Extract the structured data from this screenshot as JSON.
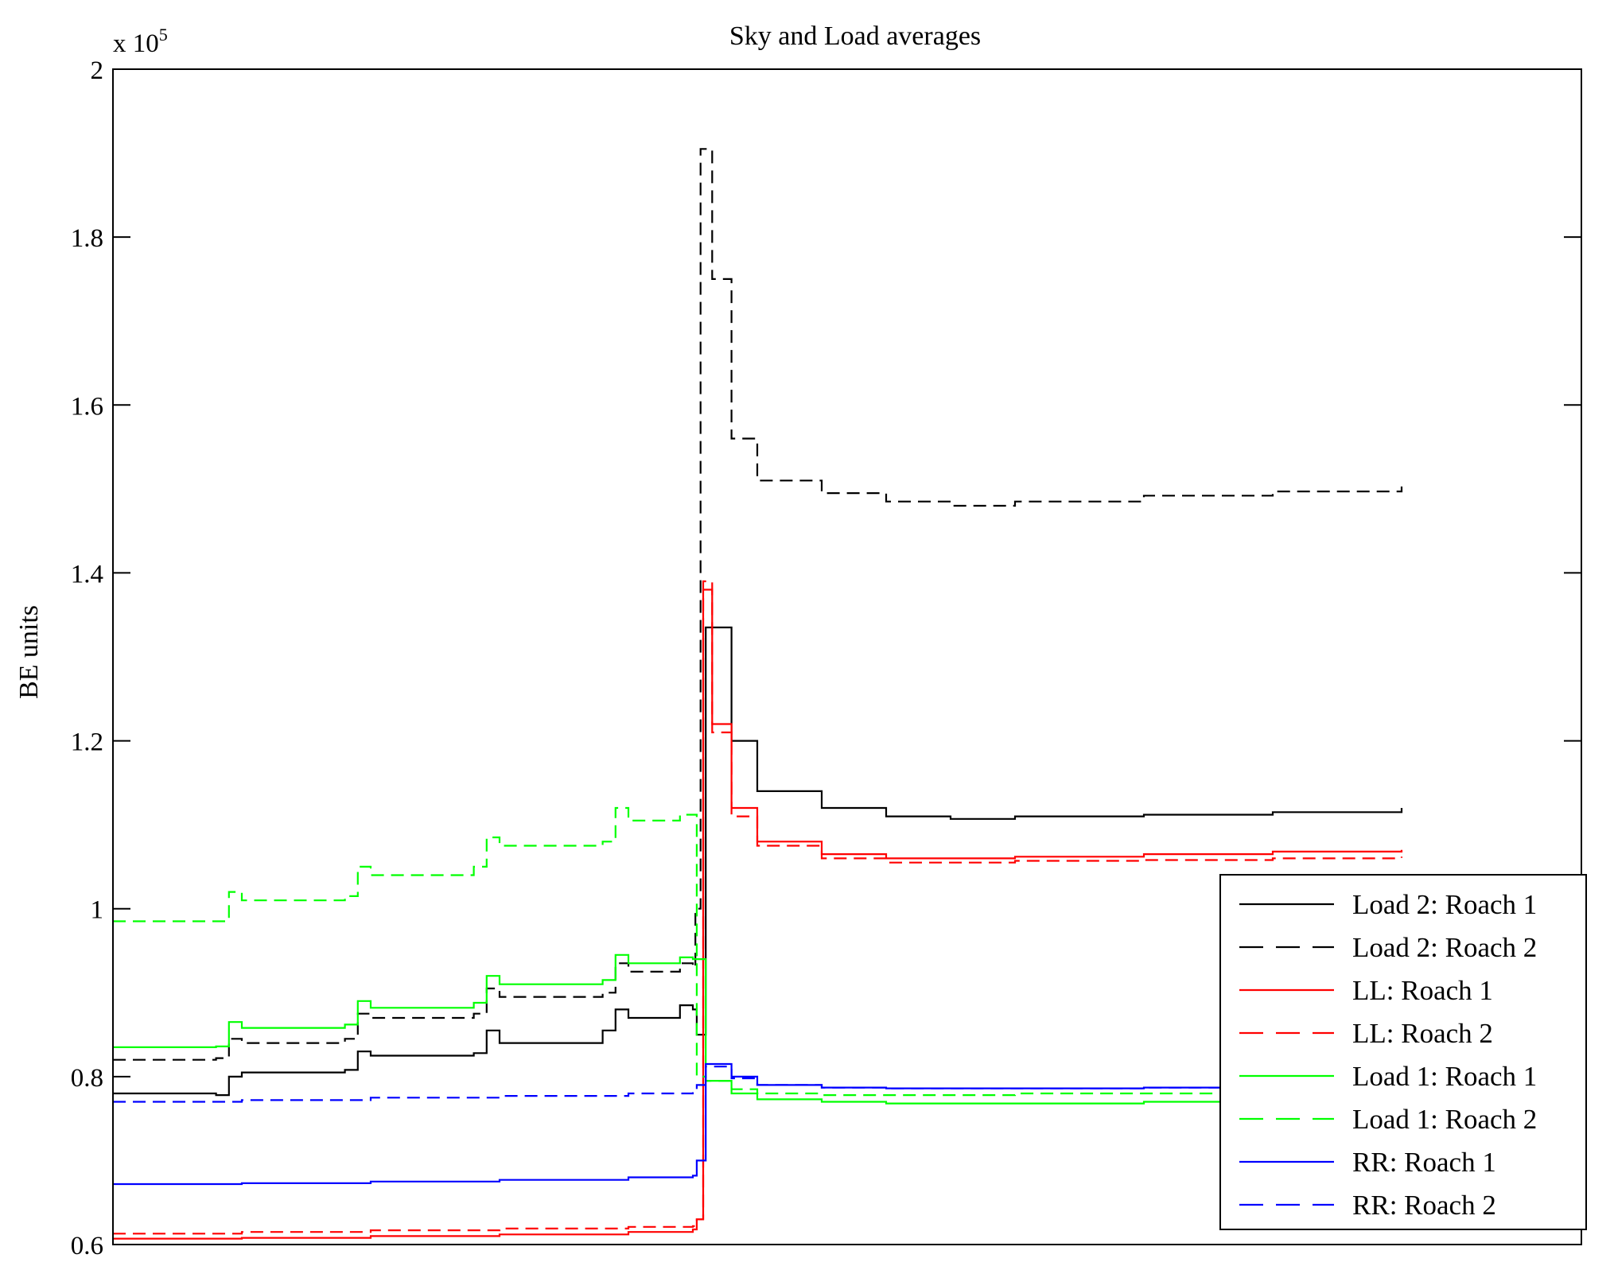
{
  "chart_data": {
    "type": "line",
    "title": "Sky and Load averages",
    "xlabel": "",
    "ylabel": "BE units",
    "y_multiplier": "x 10",
    "y_multiplier_exponent": "5",
    "ylim": [
      0.6,
      2.0
    ],
    "xlim": [
      0,
      100
    ],
    "yticks": [
      0.6,
      0.8,
      1.0,
      1.2,
      1.4,
      1.6,
      1.8,
      2.0
    ],
    "ytick_labels": [
      "0.6",
      "0.8",
      "1",
      "1.2",
      "1.4",
      "1.6",
      "1.8",
      "2"
    ],
    "legend_position": "bottom-right",
    "series": [
      {
        "name": "Load 2: Roach 1",
        "color": "#000000",
        "style": "solid",
        "x": [
          0,
          8,
          9,
          10,
          18,
          19,
          20,
          28,
          29,
          30,
          38,
          39,
          40,
          44,
          45,
          45.3,
          46,
          48,
          50,
          55,
          60,
          65,
          70,
          80,
          90,
          100
        ],
        "y": [
          0.78,
          0.778,
          0.8,
          0.805,
          0.808,
          0.83,
          0.825,
          0.828,
          0.855,
          0.84,
          0.855,
          0.88,
          0.87,
          0.885,
          0.88,
          0.85,
          1.335,
          1.2,
          1.14,
          1.12,
          1.11,
          1.107,
          1.11,
          1.112,
          1.115,
          1.12
        ]
      },
      {
        "name": "Load 2: Roach 2",
        "color": "#000000",
        "style": "dashed",
        "x": [
          0,
          8,
          9,
          10,
          18,
          19,
          20,
          28,
          29,
          30,
          38,
          39,
          40,
          44,
          45,
          45.2,
          45.6,
          46.5,
          48,
          50,
          55,
          60,
          65,
          70,
          80,
          90,
          100
        ],
        "y": [
          0.82,
          0.822,
          0.845,
          0.84,
          0.845,
          0.875,
          0.87,
          0.875,
          0.905,
          0.895,
          0.9,
          0.935,
          0.925,
          0.935,
          0.93,
          1.0,
          1.905,
          1.75,
          1.56,
          1.51,
          1.495,
          1.485,
          1.48,
          1.485,
          1.492,
          1.497,
          1.503
        ]
      },
      {
        "name": "LL: Roach 1",
        "color": "#ff0000",
        "style": "solid",
        "x": [
          0,
          10,
          20,
          30,
          40,
          45,
          45.3,
          45.8,
          46.5,
          48,
          50,
          55,
          60,
          70,
          80,
          90,
          100
        ],
        "y": [
          0.607,
          0.608,
          0.61,
          0.612,
          0.615,
          0.618,
          0.63,
          1.38,
          1.22,
          1.12,
          1.08,
          1.065,
          1.06,
          1.062,
          1.065,
          1.068,
          1.07
        ]
      },
      {
        "name": "LL: Roach 2",
        "color": "#ff0000",
        "style": "dashed",
        "x": [
          0,
          10,
          20,
          30,
          40,
          45,
          45.3,
          45.8,
          46.5,
          48,
          50,
          55,
          60,
          70,
          80,
          90,
          100
        ],
        "y": [
          0.613,
          0.615,
          0.617,
          0.619,
          0.621,
          0.622,
          0.63,
          1.39,
          1.21,
          1.11,
          1.075,
          1.06,
          1.055,
          1.057,
          1.058,
          1.06,
          1.062
        ]
      },
      {
        "name": "Load 1: Roach 1",
        "color": "#00ff00",
        "style": "solid",
        "x": [
          0,
          8,
          9,
          10,
          18,
          19,
          20,
          28,
          29,
          30,
          38,
          39,
          40,
          44,
          45,
          46,
          48,
          50,
          55,
          60,
          70,
          80,
          90,
          100
        ],
        "y": [
          0.835,
          0.836,
          0.865,
          0.858,
          0.862,
          0.89,
          0.882,
          0.888,
          0.92,
          0.91,
          0.915,
          0.945,
          0.935,
          0.942,
          0.94,
          0.795,
          0.78,
          0.773,
          0.77,
          0.768,
          0.768,
          0.77,
          0.77,
          0.771
        ]
      },
      {
        "name": "Load 1: Roach 2",
        "color": "#00ff00",
        "style": "dashed",
        "x": [
          0,
          8,
          9,
          10,
          18,
          19,
          20,
          28,
          29,
          30,
          38,
          39,
          40,
          44,
          45,
          45.3,
          46,
          48,
          50,
          55,
          60,
          70,
          80,
          90,
          100
        ],
        "y": [
          0.985,
          0.985,
          1.02,
          1.01,
          1.015,
          1.05,
          1.04,
          1.05,
          1.085,
          1.075,
          1.08,
          1.12,
          1.105,
          1.112,
          1.112,
          0.8,
          0.795,
          0.785,
          0.78,
          0.778,
          0.778,
          0.78,
          0.78,
          0.781,
          0.782
        ]
      },
      {
        "name": "RR: Roach 1",
        "color": "#0000ff",
        "style": "solid",
        "x": [
          0,
          10,
          20,
          30,
          40,
          45,
          45.3,
          46,
          48,
          50,
          55,
          60,
          70,
          80,
          90,
          100
        ],
        "y": [
          0.672,
          0.673,
          0.675,
          0.677,
          0.68,
          0.682,
          0.7,
          0.815,
          0.8,
          0.79,
          0.787,
          0.786,
          0.786,
          0.787,
          0.787,
          0.787
        ]
      },
      {
        "name": "RR: Roach 2",
        "color": "#0000ff",
        "style": "dashed",
        "x": [
          0,
          10,
          20,
          30,
          40,
          45,
          45.3,
          46,
          48,
          50,
          55,
          60,
          70,
          80,
          90,
          100
        ],
        "y": [
          0.77,
          0.772,
          0.775,
          0.777,
          0.78,
          0.782,
          0.79,
          0.812,
          0.798,
          0.79,
          0.787,
          0.786,
          0.786,
          0.787,
          0.787,
          0.787
        ]
      }
    ]
  }
}
